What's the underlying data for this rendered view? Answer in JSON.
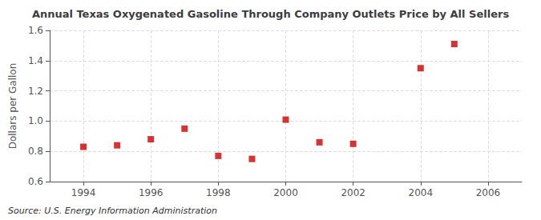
{
  "chart_data": {
    "type": "scatter",
    "title": "Annual Texas Oxygenated Gasoline Through Company Outlets Price by All Sellers",
    "ylabel": "Dollars per Gallon",
    "annotation": "Source: U.S. Energy Information Administration",
    "x": [
      1994,
      1995,
      1996,
      1997,
      1998,
      1999,
      2000,
      2001,
      2002,
      2004,
      2005
    ],
    "values": [
      0.83,
      0.84,
      0.88,
      0.95,
      0.77,
      0.75,
      1.01,
      0.86,
      0.85,
      1.35,
      1.51
    ],
    "color": "#cc0000",
    "marker": "square",
    "xlim": [
      1993,
      2007
    ],
    "xticks": [
      1994,
      1996,
      1998,
      2000,
      2002,
      2004,
      2006
    ],
    "ylim": [
      0.6,
      1.6
    ],
    "yticks": [
      0.6,
      0.8,
      {
        "value": 1.0,
        "label": "1.0"
      },
      1.2,
      1.4,
      1.6
    ],
    "grid": true
  }
}
